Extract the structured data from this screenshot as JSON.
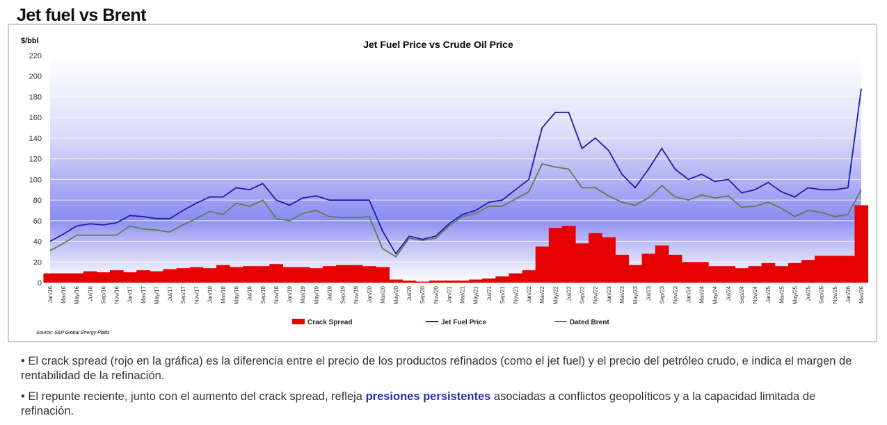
{
  "header": {
    "title": "Jet fuel vs Brent"
  },
  "chart_data": {
    "type": "line",
    "title": "Jet Fuel Price vs Crude Oil Price",
    "y_label": "$/bbl",
    "source": "Source:  S&P Global Energy Platts",
    "categories": [
      "Jan/16",
      "Mar/16",
      "May/16",
      "Jul/16",
      "Sep/16",
      "Nov/16",
      "Jan/17",
      "Mar/17",
      "May/17",
      "Jul/17",
      "Sep/17",
      "Nov/17",
      "Jan/18",
      "Mar/18",
      "May/18",
      "Jul/18",
      "Sep/18",
      "Nov/18",
      "Jan/19",
      "Mar/19",
      "May/19",
      "Jul/19",
      "Sep/19",
      "Nov/19",
      "Jan/20",
      "Mar/20",
      "May/20",
      "Jul/20",
      "Sep/20",
      "Nov/20",
      "Jan/21",
      "Mar/21",
      "May/21",
      "Jul/21",
      "Sep/21",
      "Nov/21",
      "Jan/22",
      "Mar/22",
      "May/22",
      "Jul/22",
      "Sep/22",
      "Nov/22",
      "Jan/23",
      "Mar/23",
      "May/23",
      "Jul/23",
      "Sep/23",
      "Nov/23",
      "Jan/24",
      "Mar/24",
      "May/24",
      "Jul/24",
      "Sep/24",
      "Nov/24",
      "Jan/25",
      "Mar/25",
      "May/25",
      "Jul/25",
      "Sep/25",
      "Nov/25",
      "Jan/26",
      "Mar/26"
    ],
    "series": [
      {
        "name": "Crack Spread",
        "kind": "area",
        "color": "#e60000",
        "values": [
          9,
          9,
          9,
          11,
          10,
          12,
          10,
          12,
          11,
          13,
          14,
          15,
          14,
          17,
          15,
          16,
          16,
          18,
          15,
          15,
          14,
          16,
          17,
          17,
          16,
          15,
          3,
          2,
          1,
          2,
          2,
          2,
          3,
          4,
          6,
          9,
          12,
          35,
          53,
          55,
          38,
          48,
          44,
          27,
          17,
          28,
          36,
          27,
          20,
          20,
          16,
          16,
          14,
          16,
          19,
          16,
          19,
          22,
          26,
          26,
          26,
          75
        ]
      },
      {
        "name": "Jet Fuel Price",
        "kind": "line",
        "color": "#1c1ca6",
        "values": [
          40,
          47,
          55,
          57,
          56,
          58,
          65,
          64,
          62,
          62,
          70,
          77,
          83,
          83,
          92,
          90,
          96,
          80,
          75,
          82,
          84,
          80,
          80,
          80,
          80,
          50,
          28,
          45,
          42,
          45,
          57,
          66,
          70,
          78,
          80,
          90,
          100,
          150,
          165,
          165,
          130,
          140,
          128,
          105,
          92,
          110,
          130,
          110,
          100,
          105,
          98,
          100,
          87,
          90,
          97,
          88,
          83,
          92,
          90,
          90,
          92,
          188
        ]
      },
      {
        "name": "Dated Brent",
        "kind": "line",
        "color": "#5b7f4c",
        "values": [
          31,
          38,
          46,
          46,
          46,
          46,
          55,
          52,
          51,
          49,
          56,
          62,
          69,
          66,
          77,
          74,
          80,
          62,
          60,
          67,
          70,
          64,
          63,
          63,
          64,
          33,
          25,
          43,
          41,
          43,
          55,
          64,
          67,
          74,
          74,
          81,
          88,
          115,
          112,
          110,
          92,
          92,
          84,
          78,
          75,
          82,
          94,
          83,
          80,
          85,
          82,
          84,
          73,
          74,
          78,
          72,
          64,
          70,
          68,
          64,
          66,
          90
        ]
      }
    ],
    "ylim": [
      0,
      220
    ],
    "yticks": [
      0,
      20,
      40,
      60,
      80,
      100,
      120,
      140,
      160,
      180,
      200,
      220
    ],
    "grid": true,
    "legend": "bottom"
  },
  "bullets": [
    {
      "text": "• El crack spread (rojo en la gráfica) es la diferencia entre el precio de los productos refinados (como el jet fuel) y el precio del petróleo crudo, e indica el margen de rentabilidad de la refinación."
    },
    {
      "before": "• El repunte reciente, junto con el aumento del crack spread, refleja ",
      "bold": "presiones persistentes",
      "after": " asociadas a conflictos geopolíticos y a la capacidad limitada de refinación."
    }
  ]
}
